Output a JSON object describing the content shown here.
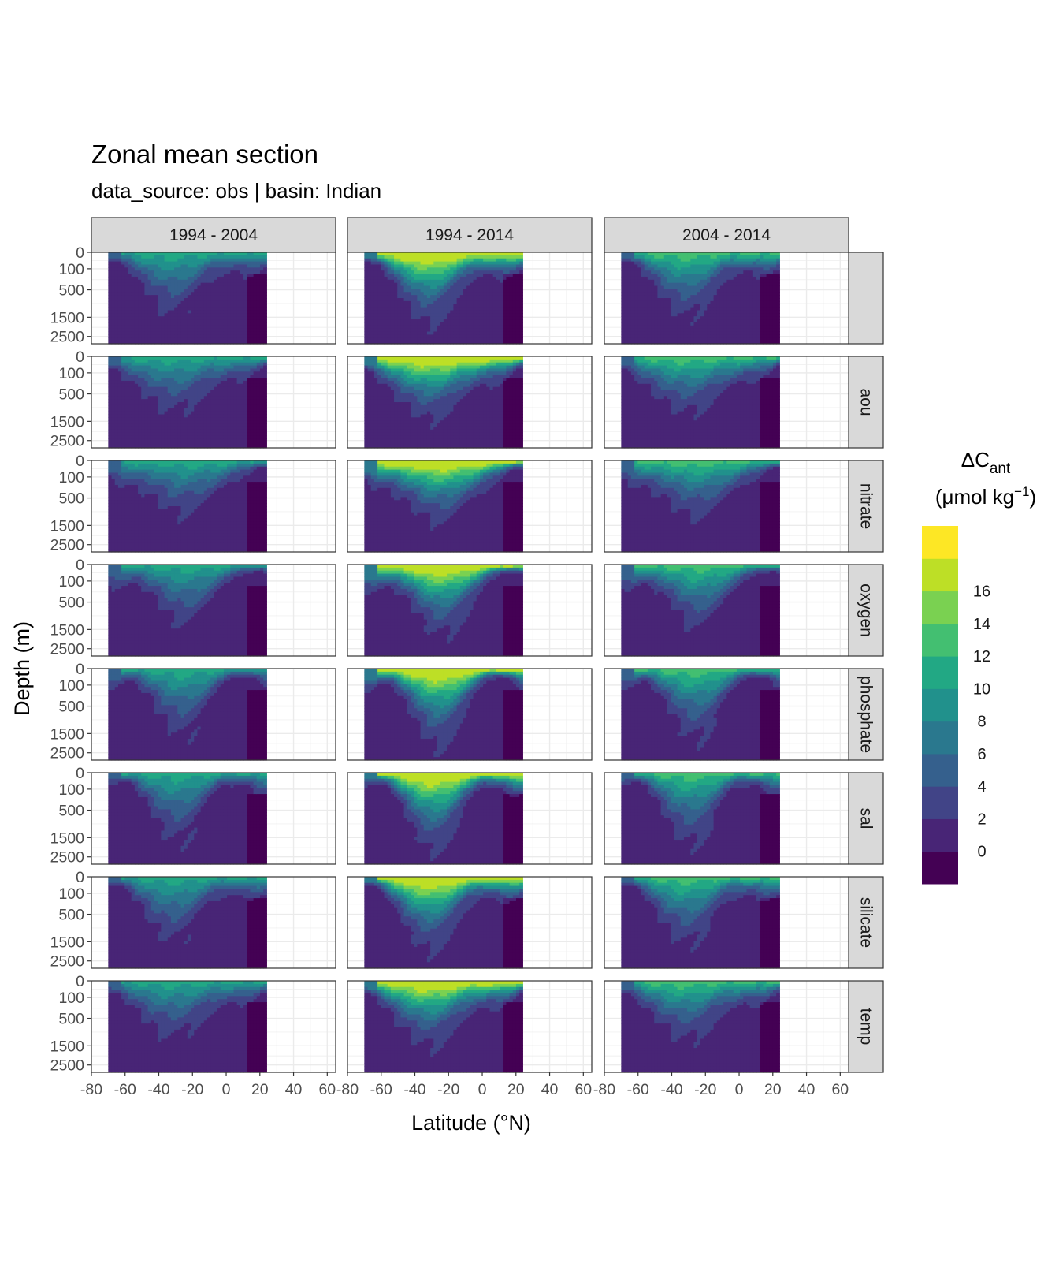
{
  "chart_data": {
    "type": "heatmap",
    "title": "Zonal mean section",
    "subtitle": "data_source:  obs | basin: Indian",
    "xlabel": "Latitude (°N)",
    "ylabel": "Depth (m)",
    "x_ticks": [
      "-80",
      "-60",
      "-40",
      "-20",
      "0",
      "20",
      "40",
      "60"
    ],
    "xlim": [
      -80,
      65
    ],
    "y_ticks": [
      "0",
      "100",
      "500",
      "1500",
      "2500"
    ],
    "y_reversed": true,
    "columns": [
      "1994 - 2004",
      "1994 - 2014",
      "2004 - 2014"
    ],
    "rows": [
      "",
      "aou",
      "nitrate",
      "oxygen",
      "phosphate",
      "sal",
      "silicate",
      "temp"
    ],
    "data_extent_latitude": [
      -70,
      24
    ],
    "grid": true,
    "legend": {
      "title_main": "ΔC",
      "title_sub": "ant",
      "title_unit": "(μmol kg",
      "title_sup": "−1",
      "title_close": ")",
      "position": "right",
      "labels": [
        "16",
        "14",
        "12",
        "10",
        "8",
        "6",
        "4",
        "2",
        "0"
      ],
      "levels": [
        -2,
        0,
        2,
        4,
        6,
        8,
        10,
        12,
        14,
        16,
        18
      ],
      "colors": [
        "#440154",
        "#482576",
        "#414487",
        "#35608d",
        "#2a788e",
        "#21918c",
        "#22a884",
        "#43bf71",
        "#7ad151",
        "#bddf26",
        "#fde725"
      ]
    },
    "surface_level_by_column": [
      10,
      18,
      12
    ]
  }
}
